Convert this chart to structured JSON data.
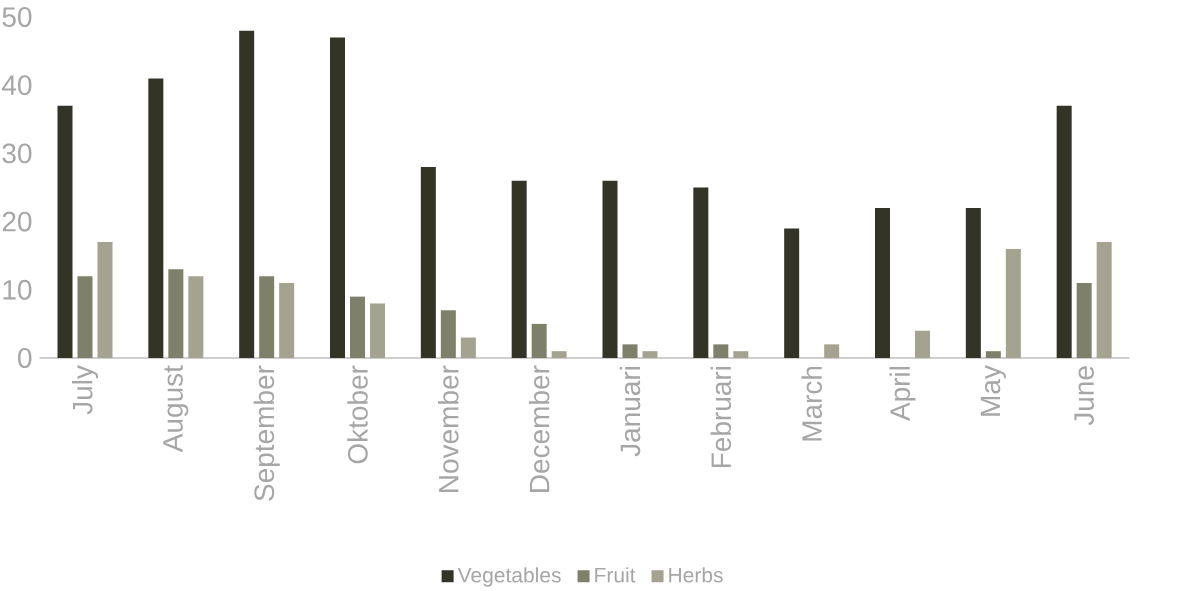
{
  "chart_data": {
    "type": "bar",
    "categories": [
      "July",
      "August",
      "September",
      "Oktober",
      "November",
      "December",
      "Januari",
      "Februari",
      "March",
      "April",
      "May",
      "June"
    ],
    "series": [
      {
        "name": "Vegetables",
        "color": "#333326",
        "values": [
          37,
          41,
          48,
          47,
          28,
          26,
          26,
          25,
          19,
          22,
          22,
          37
        ]
      },
      {
        "name": "Fruit",
        "color": "#7f806a",
        "values": [
          12,
          13,
          12,
          9,
          7,
          5,
          2,
          2,
          0,
          0,
          1,
          11
        ]
      },
      {
        "name": "Herbs",
        "color": "#a3a38f",
        "values": [
          17,
          12,
          11,
          8,
          3,
          1,
          1,
          1,
          2,
          4,
          16,
          17
        ]
      }
    ],
    "ylim": [
      0,
      50
    ],
    "yticks": [
      0,
      10,
      20,
      30,
      40,
      50
    ],
    "grid": false,
    "legend": "bottom"
  }
}
